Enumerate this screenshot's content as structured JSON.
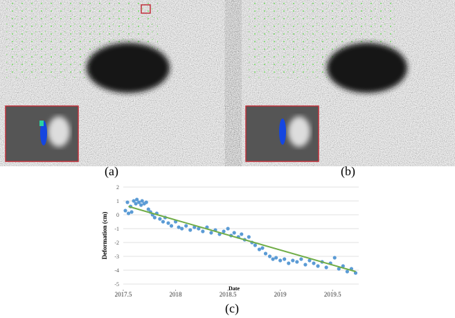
{
  "figure": {
    "labels": [
      "(a)",
      "(b)",
      "(c)"
    ]
  },
  "chart_data": {
    "type": "scatter",
    "ylabel": "Deformation (cm)",
    "xlabel": "Date",
    "xlim": [
      2017.5,
      2019.75
    ],
    "xticks": [
      2017.5,
      2018,
      2018.5,
      2019,
      2019.5
    ],
    "ylim": [
      -5,
      2
    ],
    "yticks": [
      -5,
      -4,
      -3,
      -2,
      -1,
      0,
      1,
      2
    ],
    "grid": true,
    "series": [
      {
        "color": "#5b9bd5",
        "x": [
          2017.52,
          2017.54,
          2017.55,
          2017.57,
          2017.58,
          2017.6,
          2017.62,
          2017.63,
          2017.65,
          2017.67,
          2017.68,
          2017.7,
          2017.72,
          2017.74,
          2017.76,
          2017.78,
          2017.8,
          2017.82,
          2017.85,
          2017.88,
          2017.9,
          2017.93,
          2017.96,
          2018.0,
          2018.03,
          2018.06,
          2018.1,
          2018.14,
          2018.18,
          2018.22,
          2018.26,
          2018.3,
          2018.34,
          2018.38,
          2018.42,
          2018.46,
          2018.5,
          2018.53,
          2018.56,
          2018.6,
          2018.63,
          2018.66,
          2018.7,
          2018.73,
          2018.76,
          2018.8,
          2018.83,
          2018.86,
          2018.9,
          2018.93,
          2018.96,
          2019.0,
          2019.04,
          2019.08,
          2019.12,
          2019.16,
          2019.2,
          2019.24,
          2019.28,
          2019.32,
          2019.36,
          2019.4,
          2019.44,
          2019.48,
          2019.52,
          2019.56,
          2019.6,
          2019.64,
          2019.68,
          2019.72
        ],
        "values": [
          0.3,
          0.9,
          0.1,
          0.6,
          0.2,
          1.0,
          0.8,
          1.1,
          0.9,
          0.7,
          1.0,
          0.8,
          0.9,
          0.4,
          0.2,
          0.0,
          -0.2,
          0.1,
          -0.3,
          -0.5,
          -0.2,
          -0.6,
          -0.8,
          -0.5,
          -0.9,
          -1.0,
          -0.8,
          -1.1,
          -0.9,
          -1.0,
          -1.2,
          -0.9,
          -1.3,
          -1.1,
          -1.4,
          -1.2,
          -1.0,
          -1.5,
          -1.3,
          -1.6,
          -1.4,
          -1.8,
          -1.6,
          -2.0,
          -2.2,
          -2.5,
          -2.4,
          -2.8,
          -3.0,
          -3.2,
          -3.1,
          -3.3,
          -3.2,
          -3.5,
          -3.3,
          -3.4,
          -3.2,
          -3.6,
          -3.3,
          -3.5,
          -3.7,
          -3.4,
          -3.8,
          -3.5,
          -3.1,
          -3.9,
          -3.7,
          -4.1,
          -3.9,
          -4.2
        ]
      }
    ],
    "trendline": {
      "color": "#70ad47",
      "x": [
        2017.55,
        2019.72
      ],
      "values": [
        0.6,
        -4.1
      ]
    }
  }
}
